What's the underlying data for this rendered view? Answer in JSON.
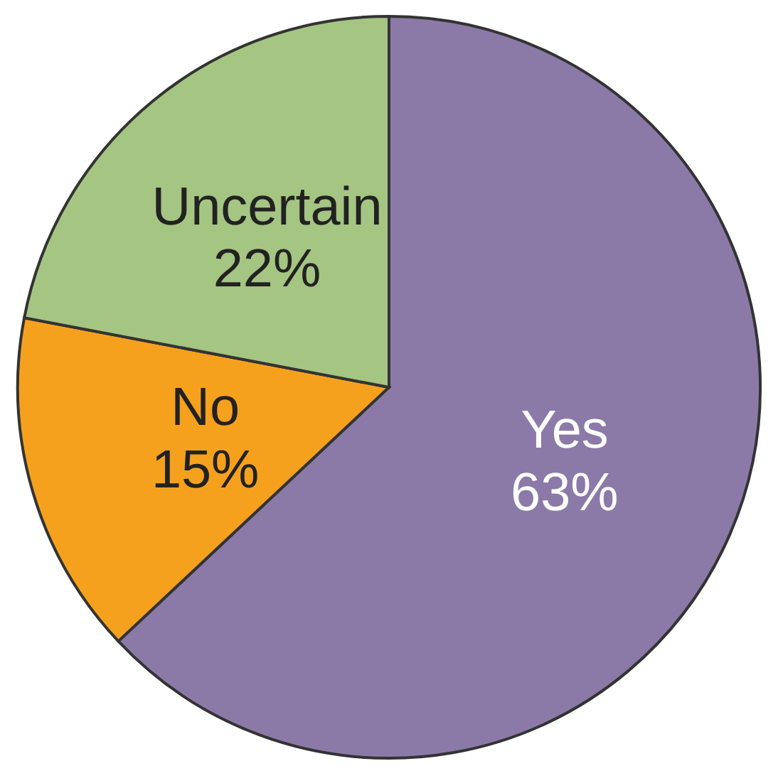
{
  "chart_data": {
    "type": "pie",
    "categories": [
      "Yes",
      "No",
      "Uncertain"
    ],
    "values": [
      63,
      15,
      22
    ],
    "colors": [
      "#8b7aa8",
      "#f5a11e",
      "#a5c582"
    ],
    "value_labels": [
      "63%",
      "15%",
      "22%"
    ],
    "legend": false
  }
}
